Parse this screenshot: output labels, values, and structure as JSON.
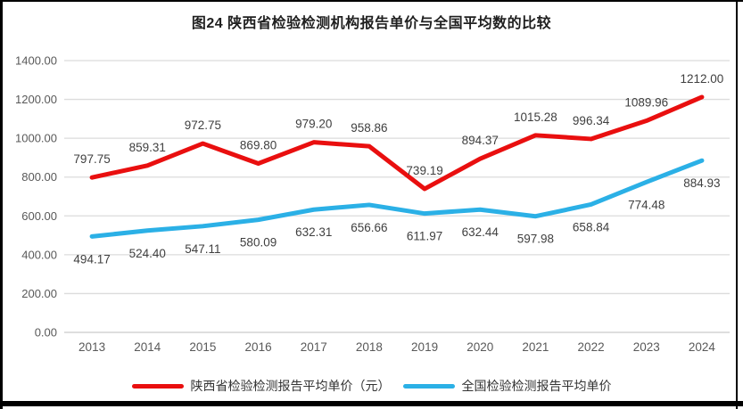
{
  "chart_data": {
    "type": "line",
    "title": "图24 陕西省检验检测机构报告单价与全国平均数的比较",
    "categories": [
      "2013",
      "2014",
      "2015",
      "2016",
      "2017",
      "2018",
      "2019",
      "2020",
      "2021",
      "2022",
      "2023",
      "2024"
    ],
    "series": [
      {
        "name": "陕西省检验检测报告平均单价（元）",
        "color": "#e90f0f",
        "label_position": "above",
        "values": [
          797.75,
          859.31,
          972.75,
          869.8,
          979.2,
          958.86,
          739.19,
          894.37,
          1015.28,
          996.34,
          1089.96,
          1212.0
        ]
      },
      {
        "name": "全国检验检测报告平均单价",
        "color": "#2bb0e6",
        "label_position": "below",
        "values": [
          494.17,
          524.4,
          547.11,
          580.09,
          632.31,
          656.66,
          611.97,
          632.44,
          597.98,
          658.84,
          774.48,
          884.93
        ]
      }
    ],
    "ylim": [
      0,
      1400
    ],
    "ytick_step": 200,
    "ytick_labels": [
      "0.00",
      "200.00",
      "400.00",
      "600.00",
      "800.00",
      "1000.00",
      "1200.00",
      "1400.00"
    ],
    "grid": true,
    "legend_position": "bottom",
    "xlabel": "",
    "ylabel": ""
  },
  "colors": {
    "frame": "#000000",
    "gridline": "#dcdcdc",
    "baseline": "#c9c9c9",
    "axis_text": "#595959",
    "data_label_text": "#3f3f3f",
    "background": "#ffffff"
  }
}
